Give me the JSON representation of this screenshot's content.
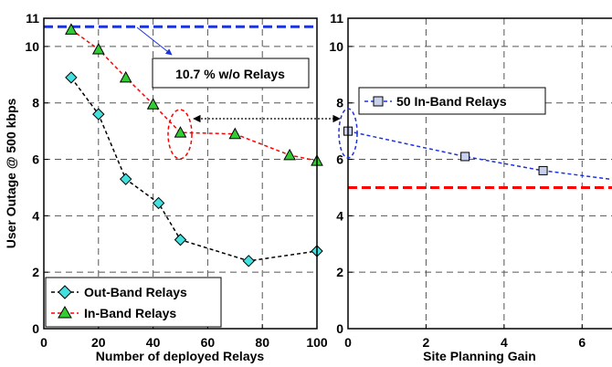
{
  "chart_data": [
    {
      "type": "line",
      "title": "",
      "xlabel": "Number of deployed Relays",
      "ylabel": "User Outage @ 500 kbps",
      "xlim": [
        0,
        100
      ],
      "ylim": [
        0,
        11
      ],
      "xticks": [
        0,
        20,
        40,
        60,
        80,
        100
      ],
      "yticks": [
        0,
        2,
        4,
        6,
        8,
        10
      ],
      "ytick_extra": 11,
      "grid": true,
      "series": [
        {
          "name": "Out-Band Relays",
          "color": "#000000",
          "marker_color": "#44e0e0",
          "marker": "diamond",
          "x": [
            10,
            20,
            30,
            42,
            50,
            75,
            100
          ],
          "y": [
            8.9,
            7.6,
            5.3,
            4.45,
            3.15,
            2.4,
            2.75
          ]
        },
        {
          "name": "In-Band Relays",
          "color": "#ff0000",
          "marker_color": "#33cc33",
          "marker": "triangle",
          "x": [
            10,
            20,
            30,
            40,
            50,
            70,
            90,
            100
          ],
          "y": [
            10.6,
            9.9,
            8.9,
            7.95,
            6.95,
            6.9,
            6.15,
            5.95
          ]
        }
      ],
      "reference_lines": [
        {
          "y": 10.7,
          "color": "#1a33dd"
        }
      ],
      "legend_position": "bottom-left",
      "annotations": [
        {
          "text": "10.7 % w/o Relays"
        }
      ]
    },
    {
      "type": "line",
      "title": "",
      "xlabel": "Site Planning Gain",
      "ylabel": "",
      "xlim": [
        0,
        7
      ],
      "ylim": [
        0,
        11
      ],
      "xticks": [
        0,
        2,
        4,
        6
      ],
      "yticks": [
        0,
        2,
        4,
        6,
        8,
        10
      ],
      "ytick_extra": 11,
      "grid": true,
      "series": [
        {
          "name": "50 In-Band Relays",
          "color": "#1a33dd",
          "marker_color": "#c8d0ec",
          "marker": "square",
          "x": [
            0,
            3,
            5,
            7
          ],
          "y": [
            7.0,
            6.1,
            5.6,
            5.25
          ]
        }
      ],
      "reference_lines": [
        {
          "y": 5.0,
          "color": "#ff0000"
        }
      ],
      "legend_position": "top-left"
    }
  ]
}
